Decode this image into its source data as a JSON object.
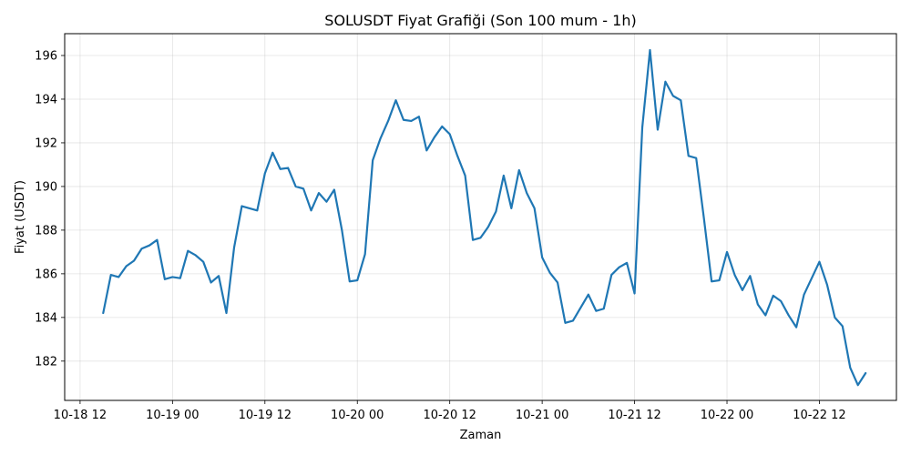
{
  "chart_data": {
    "type": "line",
    "title": "SOLUSDT Fiyat Grafiği (Son 100 mum - 1h)",
    "xlabel": "Zaman",
    "ylabel": "Fiyat (USDT)",
    "x_start": "2025-10-18 15:00",
    "x_interval_hours": 1,
    "xlim": [
      "2025-10-18 10:00",
      "2025-10-22 22:00"
    ],
    "ylim": [
      180.2,
      197.0
    ],
    "x_ticks": [
      "10-18 12",
      "10-19 00",
      "10-19 12",
      "10-20 00",
      "10-20 12",
      "10-21 00",
      "10-21 12",
      "10-22 00",
      "10-22 12"
    ],
    "y_ticks": [
      182,
      184,
      186,
      188,
      190,
      192,
      194,
      196
    ],
    "grid": true,
    "line_color": "#1f77b4",
    "series": [
      {
        "name": "",
        "values": [
          184.2,
          185.95,
          185.85,
          186.35,
          186.6,
          187.15,
          187.3,
          187.55,
          185.75,
          185.85,
          185.8,
          187.05,
          186.85,
          186.55,
          185.6,
          185.9,
          184.2,
          187.2,
          189.1,
          189.0,
          188.9,
          190.6,
          191.55,
          190.8,
          190.85,
          190.0,
          189.9,
          188.9,
          189.7,
          189.3,
          189.85,
          188.0,
          185.65,
          185.7,
          186.9,
          191.2,
          192.2,
          193.0,
          193.95,
          193.05,
          193.0,
          193.2,
          191.65,
          192.25,
          192.75,
          192.4,
          191.4,
          190.5,
          187.55,
          187.65,
          188.15,
          188.85,
          190.5,
          189.0,
          190.75,
          189.7,
          189.0,
          186.75,
          186.05,
          185.6,
          183.75,
          183.85,
          184.45,
          185.05,
          184.3,
          184.4,
          185.95,
          186.3,
          186.5,
          185.1,
          192.7,
          196.25,
          192.6,
          194.8,
          194.15,
          193.95,
          191.4,
          191.3,
          188.55,
          185.65,
          185.7,
          187.0,
          185.95,
          185.25,
          185.9,
          184.6,
          184.1,
          185.0,
          184.75,
          184.1,
          183.55,
          185.05,
          185.8,
          186.55,
          185.5,
          184.0,
          183.6,
          181.7,
          180.9,
          181.45
        ]
      }
    ]
  }
}
